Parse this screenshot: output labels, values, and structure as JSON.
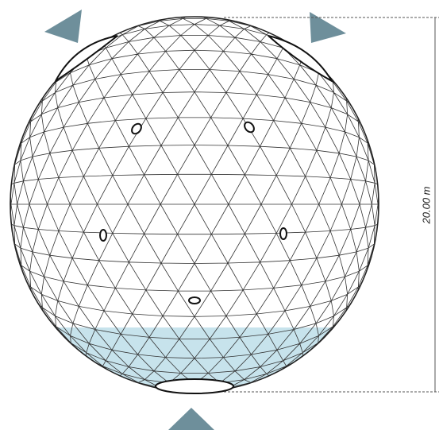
{
  "dimension": {
    "label": "20.00 m"
  }
}
